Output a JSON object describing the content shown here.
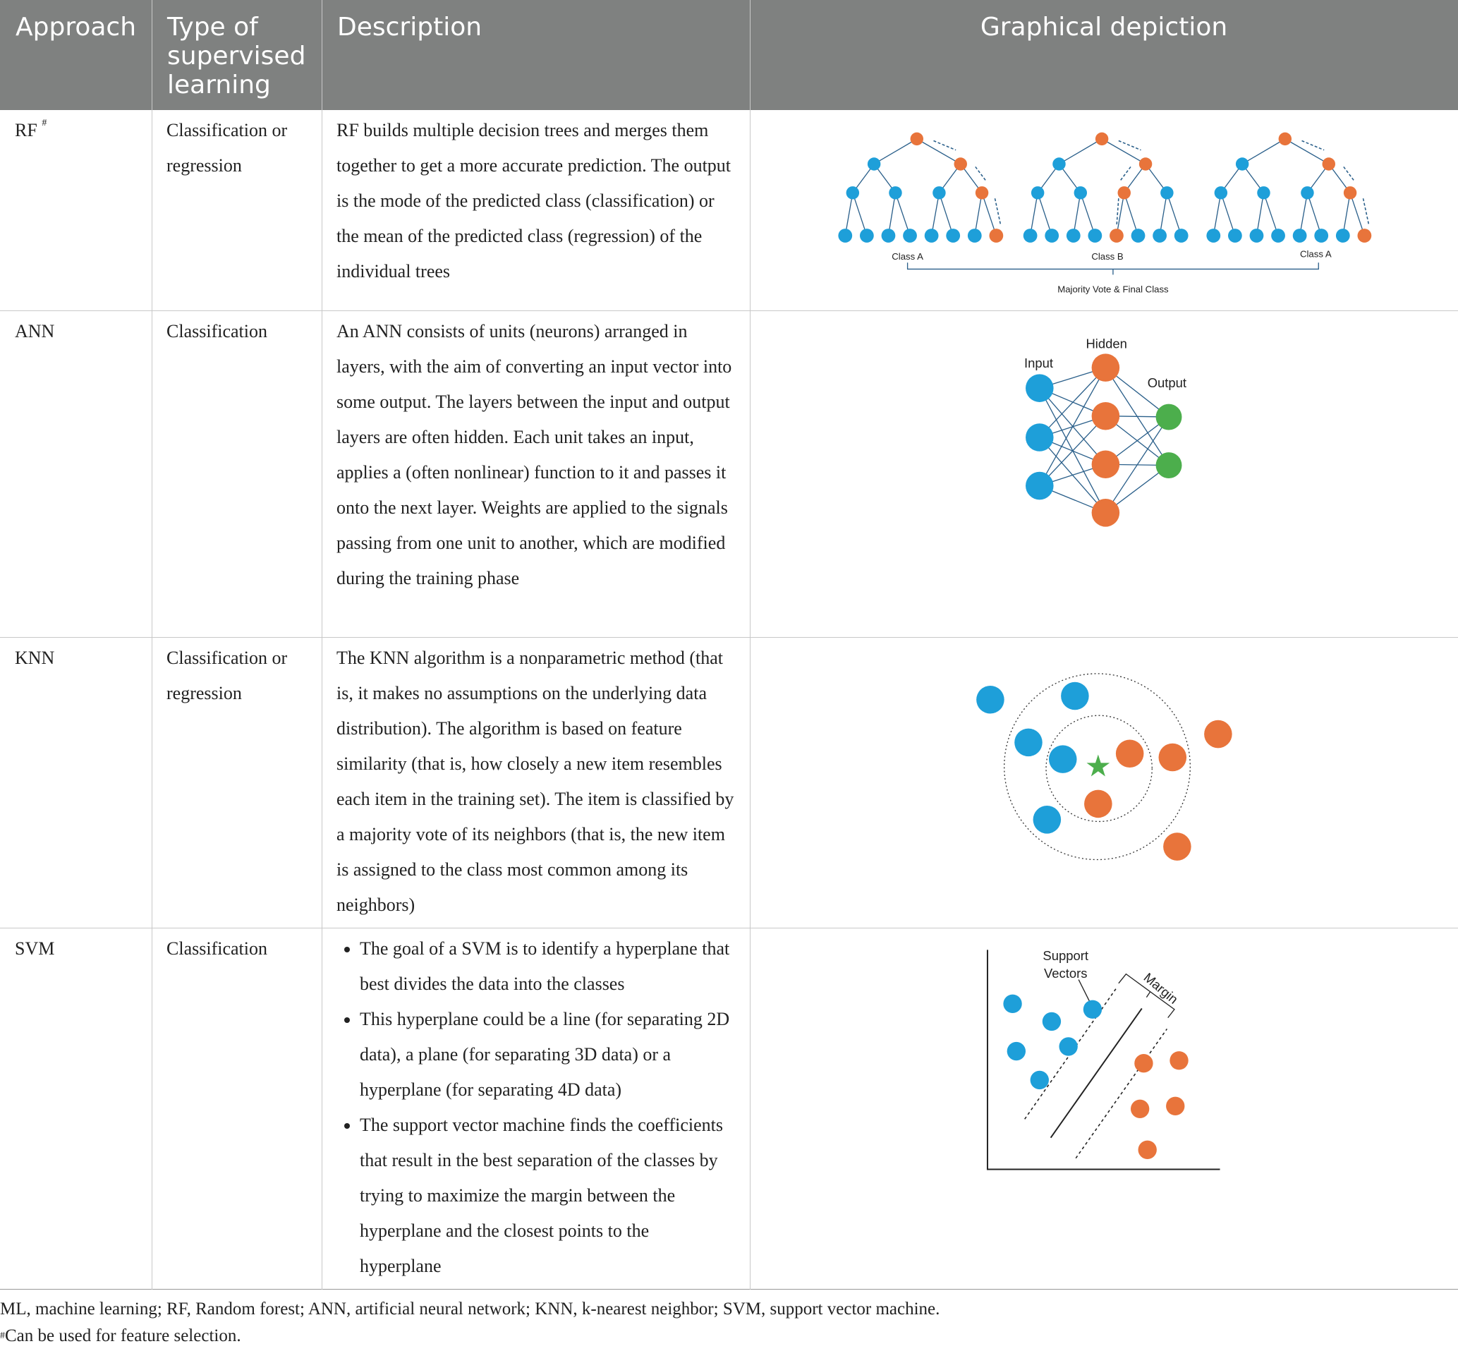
{
  "header": {
    "columns": [
      "Approach",
      "Type of supervised learning",
      "Description",
      "Graphical depiction"
    ]
  },
  "rows": [
    {
      "approach": "RF",
      "approach_mark": "#",
      "type": "Classification or regression",
      "description": "RF builds multiple decision trees and merges them together to get a more accurate prediction. The output is the mode of the predicted class (classification) or the mean of the predicted class (regression) of the individual trees",
      "figure": {
        "class_labels": [
          "Class A",
          "Class B",
          "Class A"
        ],
        "caption": "Majority Vote & Final Class"
      }
    },
    {
      "approach": "ANN",
      "type": "Classification",
      "description": "An ANN consists of units (neurons) arranged in layers, with the aim of converting an input vector into some output. The layers between the input and output layers are often hidden. Each unit takes an input, applies a (often nonlinear) function to it and passes it onto the next layer. Weights are applied to the signals passing from one unit to another, which are modified during the training phase",
      "figure": {
        "layer_labels": [
          "Input",
          "Hidden",
          "Output"
        ]
      }
    },
    {
      "approach": "KNN",
      "type": "Classification or regression",
      "description": "The KNN algorithm is a nonparametric method (that is, it makes no assumptions on the underlying data distribution). The algorithm is based on feature similarity (that is, how closely a new item resembles each item in the training set). The item is classified by a majority vote of its neighbors (that is, the new item is assigned to the class most common among its neighbors)"
    },
    {
      "approach": "SVM",
      "type": "Classification",
      "bullets": [
        "The goal of a SVM is to identify a hyperplane that best divides the data into the classes",
        "This hyperplane could be a line (for separating 2D data), a plane (for separating 3D data) or a hyperplane (for separating 4D data)",
        "The support vector machine finds the coefficients that result in the best separation of the classes by trying to maximize the margin between the hyperplane and the closest points to the hyperplane"
      ],
      "figure": {
        "support_label": [
          "Support",
          "Vectors"
        ],
        "margin_label": "Margin"
      }
    }
  ],
  "footnotes": {
    "abbreviations": "ML, machine learning; RF, Random forest; ANN, artificial neural network; KNN, k-nearest neighbor; SVM, support vector machine.",
    "note_mark": "#",
    "note": "Can be used for feature selection."
  }
}
